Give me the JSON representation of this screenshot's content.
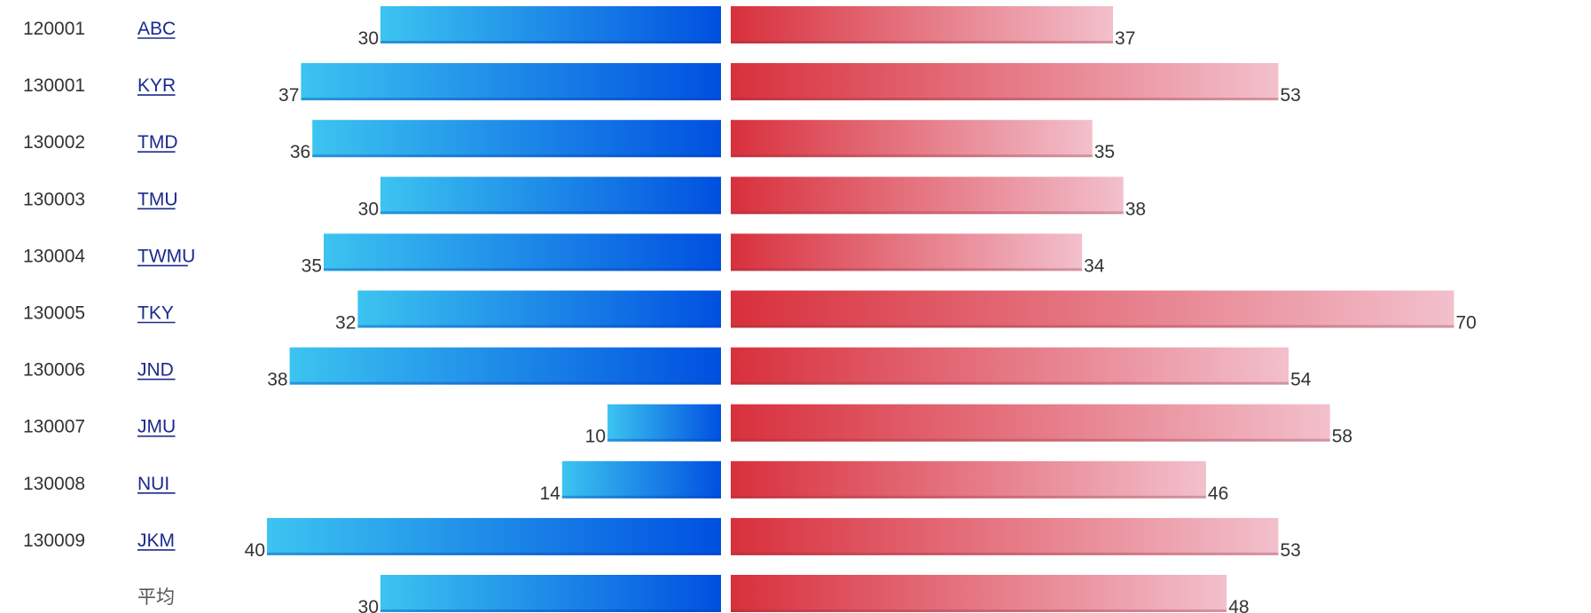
{
  "chart_data": {
    "type": "bar",
    "categories": [
      {
        "code": "120001",
        "name": "ABC"
      },
      {
        "code": "130001",
        "name": "KYR"
      },
      {
        "code": "130002",
        "name": "TMD"
      },
      {
        "code": "130003",
        "name": "TMU"
      },
      {
        "code": "130004",
        "name": "TWMU"
      },
      {
        "code": "130005",
        "name": "TKY"
      },
      {
        "code": "130006",
        "name": "JND"
      },
      {
        "code": "130007",
        "name": "JMU"
      },
      {
        "code": "130008",
        "name": "NUI"
      },
      {
        "code": "130009",
        "name": "JKM"
      },
      {
        "code": "",
        "name": "平均"
      }
    ],
    "series": [
      {
        "values": [
          30,
          37,
          36,
          30,
          35,
          32,
          38,
          10,
          14,
          40,
          30
        ],
        "color": "#0050e0",
        "color_light": "#3cc4f0"
      },
      {
        "values": [
          37,
          53,
          35,
          38,
          34,
          70,
          54,
          58,
          46,
          53,
          48
        ],
        "color": "#d8303c",
        "color_light": "#f2c0cc"
      }
    ],
    "linked_names": [
      "ABC",
      "KYR",
      "TMD",
      "TMU",
      "TWMU",
      "TKY",
      "JND",
      "JMU",
      "NUI",
      "JKM"
    ]
  }
}
